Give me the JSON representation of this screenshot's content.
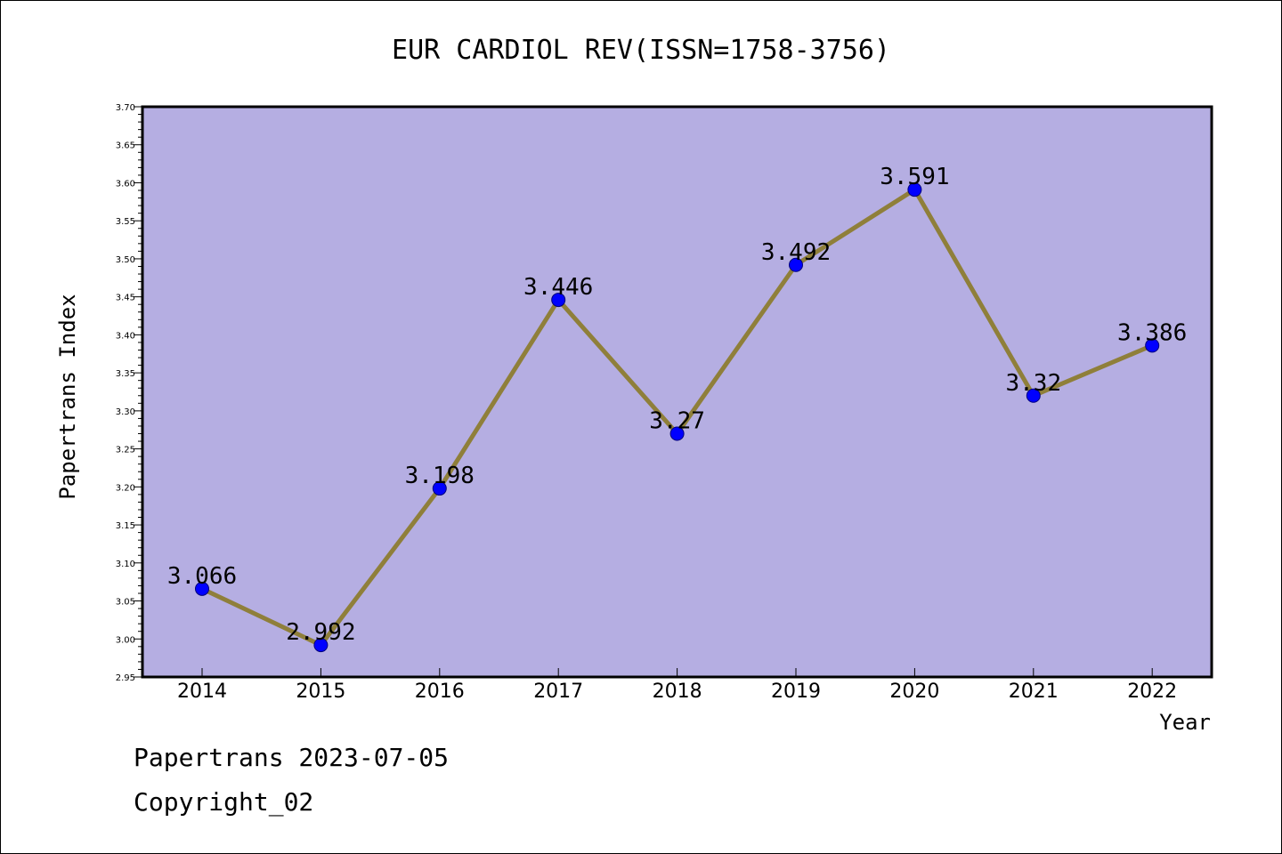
{
  "footer": {
    "line1": "Papertrans 2023-07-05",
    "line2": "Copyright_02"
  },
  "colors": {
    "plot_background": "#b5aee2",
    "line": "#8f7f3a",
    "marker": "#0000ff",
    "marker_edge": "#00007a"
  },
  "chart_data": {
    "type": "line",
    "title": "EUR CARDIOL REV(ISSN=1758-3756)",
    "xlabel": "Year",
    "ylabel": "Papertrans Index",
    "categories": [
      "2014",
      "2015",
      "2016",
      "2017",
      "2018",
      "2019",
      "2020",
      "2021",
      "2022"
    ],
    "series": [
      {
        "values": [
          3.066,
          2.992,
          3.198,
          3.446,
          3.27,
          3.492,
          3.591,
          3.32,
          3.386
        ],
        "labels": [
          "3.066",
          "2.992",
          "3.198",
          "3.446",
          "3.27",
          "3.492",
          "3.591",
          "3.32",
          "3.386"
        ]
      }
    ],
    "ylim": [
      2.95,
      3.7
    ],
    "yticks": [
      "2.95",
      "3.00",
      "3.05",
      "3.10",
      "3.15",
      "3.20",
      "3.25",
      "3.30",
      "3.35",
      "3.40",
      "3.45",
      "3.50",
      "3.55",
      "3.60",
      "3.65",
      "3.70"
    ],
    "grid": false,
    "legend": "none"
  }
}
